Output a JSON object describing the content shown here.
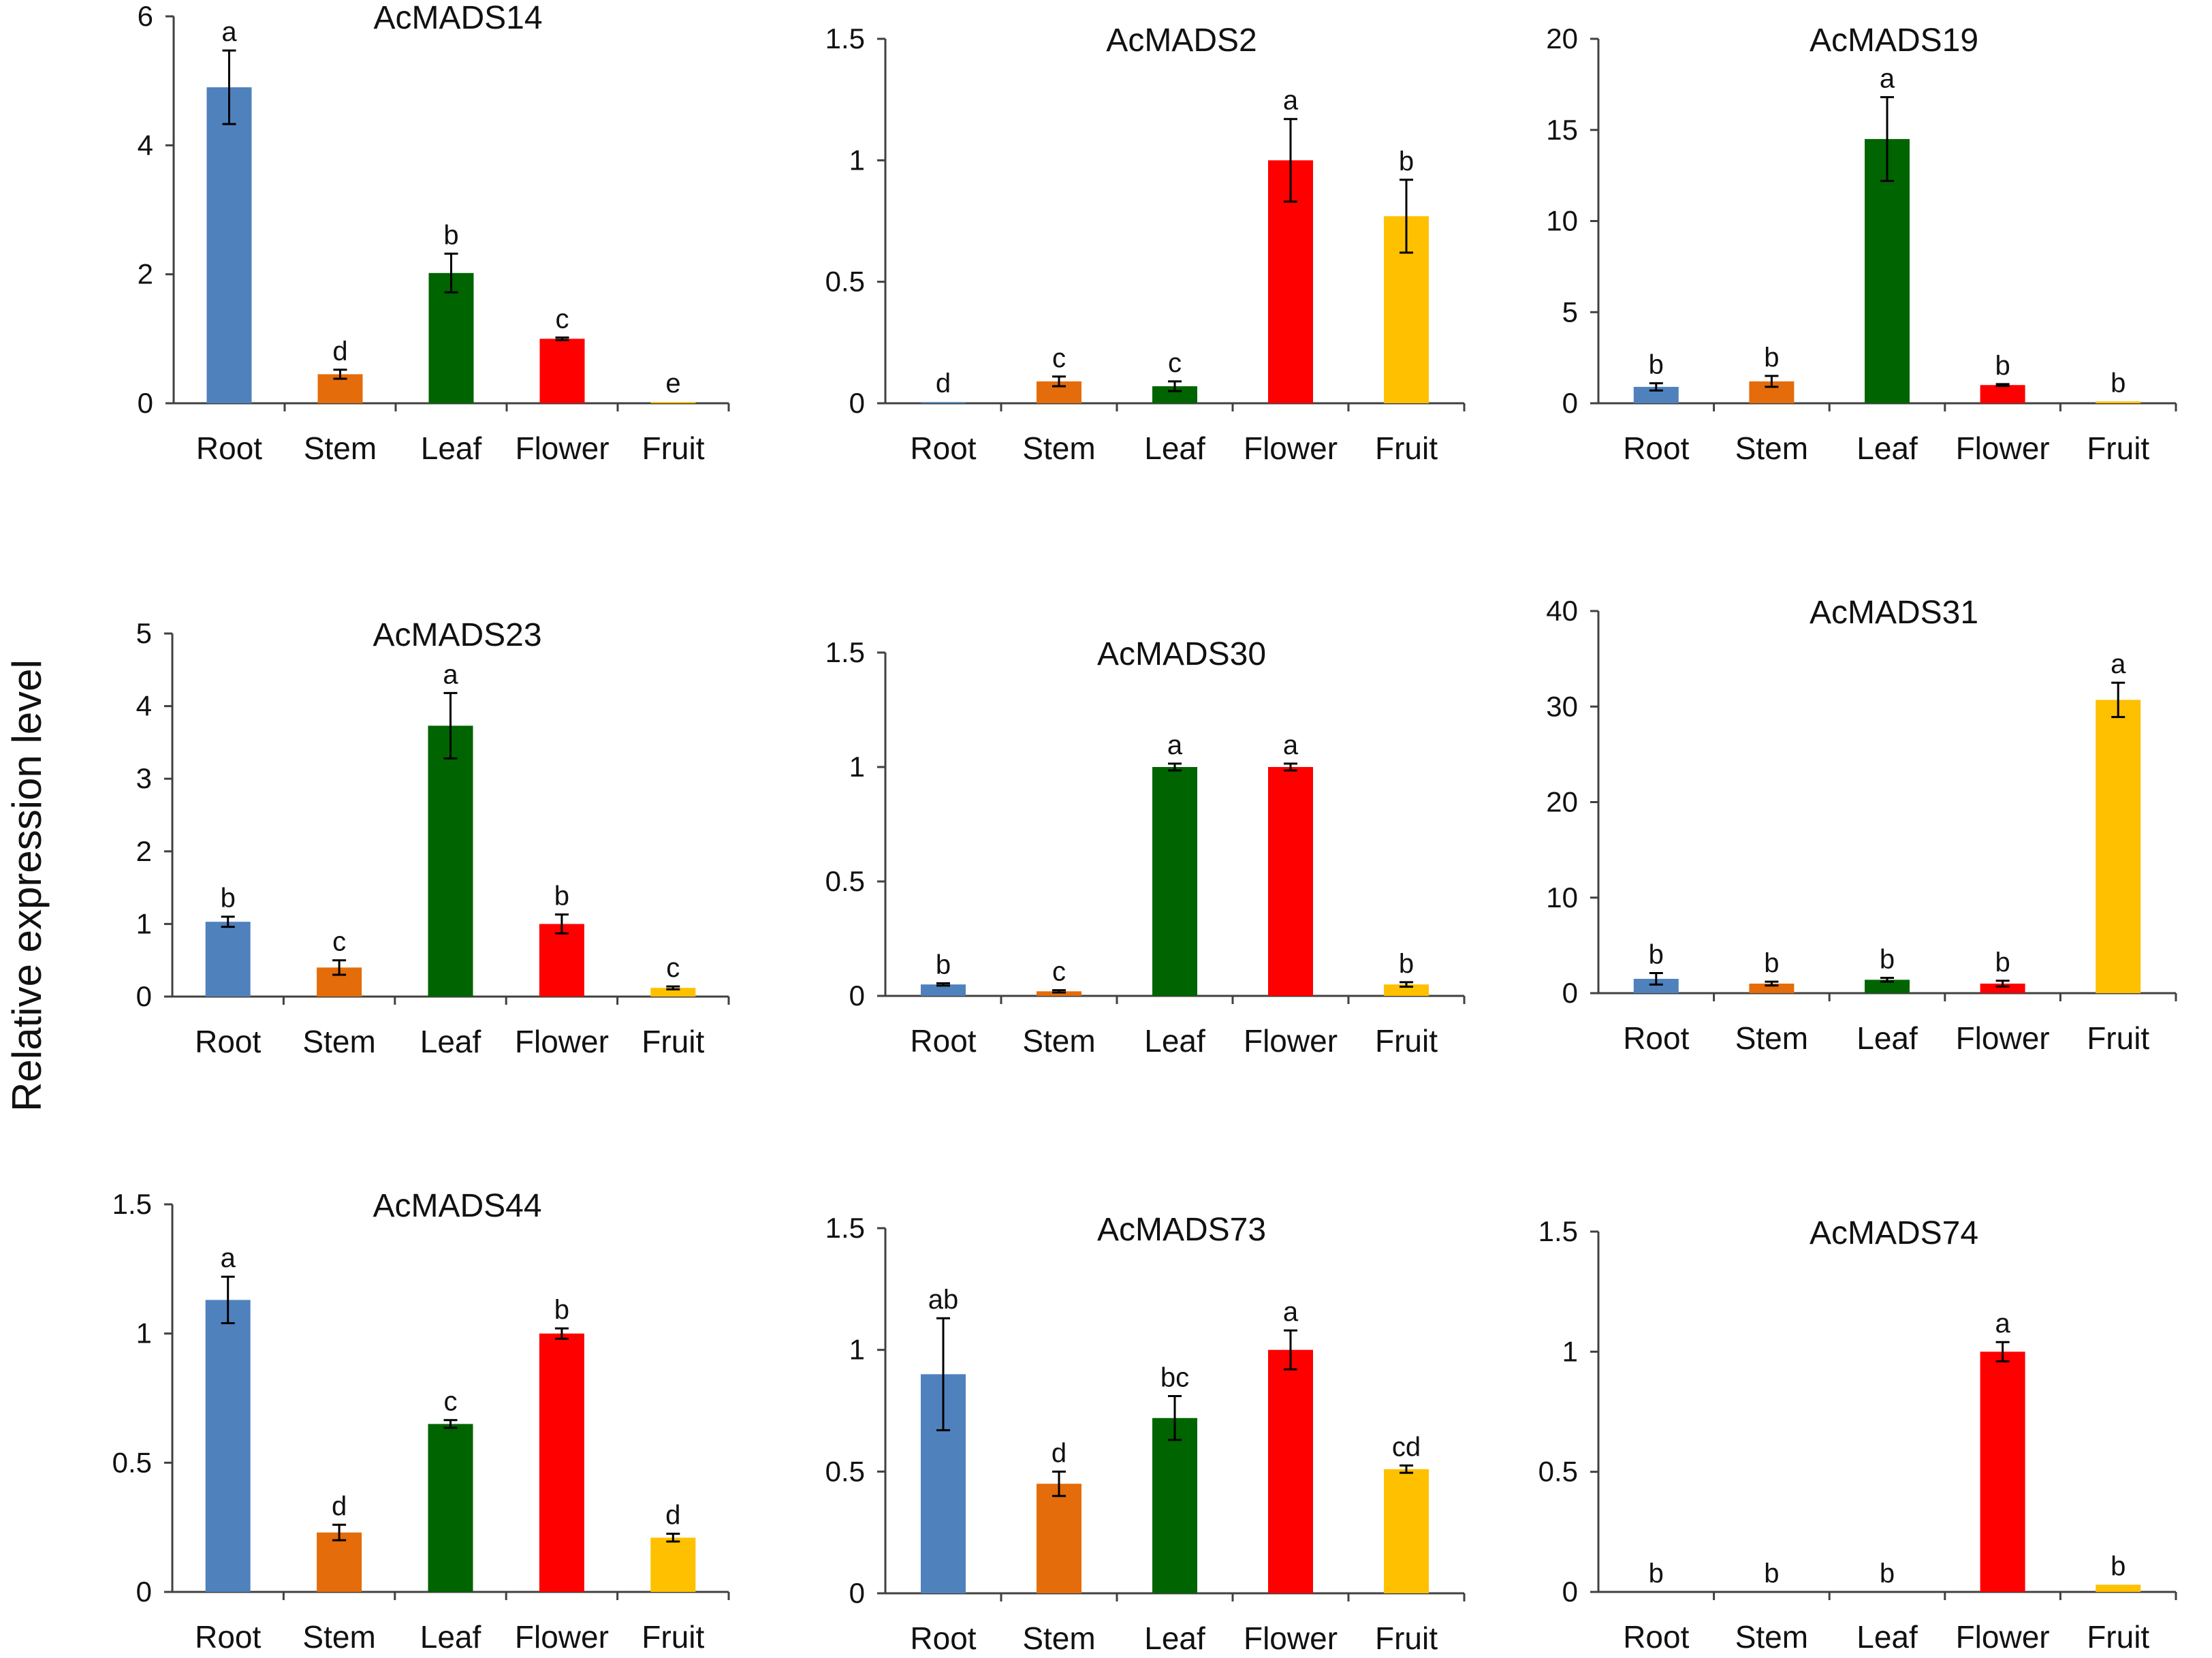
{
  "ylabel": "Relative expression level",
  "colors": {
    "Root": "#4f81bd",
    "Stem": "#e46c0a",
    "Leaf": "#006400",
    "Flower": "#ff0000",
    "Fruit": "#ffc000"
  },
  "chart_data": [
    {
      "type": "bar",
      "title": "AcMADS14",
      "categories": [
        "Root",
        "Stem",
        "Leaf",
        "Flower",
        "Fruit"
      ],
      "values": [
        4.9,
        0.45,
        2.02,
        1.0,
        0.02
      ],
      "errors": [
        0.57,
        0.07,
        0.3,
        0.02,
        0.0
      ],
      "significance": [
        "a",
        "d",
        "b",
        "c",
        "e"
      ],
      "ylim": [
        0,
        6
      ],
      "yticks": [
        "0",
        "2",
        "4",
        "6"
      ],
      "tick_values": [
        0,
        2,
        4,
        6
      ]
    },
    {
      "type": "bar",
      "title": "AcMADS2",
      "categories": [
        "Root",
        "Stem",
        "Leaf",
        "Flower",
        "Fruit"
      ],
      "values": [
        0.005,
        0.09,
        0.07,
        1.0,
        0.77
      ],
      "errors": [
        0.0,
        0.02,
        0.02,
        0.17,
        0.15
      ],
      "significance": [
        "d",
        "c",
        "c",
        "a",
        "b"
      ],
      "ylim": [
        0,
        1.5
      ],
      "yticks": [
        "0",
        "0.5",
        "1",
        "1.5"
      ],
      "tick_values": [
        0,
        0.5,
        1,
        1.5
      ]
    },
    {
      "type": "bar",
      "title": "AcMADS19",
      "categories": [
        "Root",
        "Stem",
        "Leaf",
        "Flower",
        "Fruit"
      ],
      "values": [
        0.9,
        1.2,
        14.5,
        1.0,
        0.1
      ],
      "errors": [
        0.2,
        0.3,
        2.3,
        0.05,
        0.0
      ],
      "significance": [
        "b",
        "b",
        "a",
        "b",
        "b"
      ],
      "ylim": [
        0,
        20
      ],
      "yticks": [
        "0",
        "5",
        "10",
        "15",
        "20"
      ],
      "tick_values": [
        0,
        5,
        10,
        15,
        20
      ]
    },
    {
      "type": "bar",
      "title": "AcMADS23",
      "categories": [
        "Root",
        "Stem",
        "Leaf",
        "Flower",
        "Fruit"
      ],
      "values": [
        1.03,
        0.4,
        3.73,
        1.0,
        0.12
      ],
      "errors": [
        0.07,
        0.1,
        0.45,
        0.13,
        0.02
      ],
      "significance": [
        "b",
        "c",
        "a",
        "b",
        "c"
      ],
      "ylim": [
        0,
        5
      ],
      "yticks": [
        "0",
        "1",
        "2",
        "3",
        "4",
        "5"
      ],
      "tick_values": [
        0,
        1,
        2,
        3,
        4,
        5
      ]
    },
    {
      "type": "bar",
      "title": "AcMADS30",
      "categories": [
        "Root",
        "Stem",
        "Leaf",
        "Flower",
        "Fruit"
      ],
      "values": [
        0.05,
        0.02,
        1.0,
        1.0,
        0.05
      ],
      "errors": [
        0.005,
        0.005,
        0.015,
        0.015,
        0.01
      ],
      "significance": [
        "b",
        "c",
        "a",
        "a",
        "b"
      ],
      "ylim": [
        0,
        1.5
      ],
      "yticks": [
        "0",
        "0.5",
        "1",
        "1.5"
      ],
      "tick_values": [
        0,
        0.5,
        1,
        1.5
      ]
    },
    {
      "type": "bar",
      "title": "AcMADS31",
      "categories": [
        "Root",
        "Stem",
        "Leaf",
        "Flower",
        "Fruit"
      ],
      "values": [
        1.5,
        1.0,
        1.4,
        1.0,
        30.7
      ],
      "errors": [
        0.6,
        0.2,
        0.2,
        0.3,
        1.8
      ],
      "significance": [
        "b",
        "b",
        "b",
        "b",
        "a"
      ],
      "ylim": [
        0,
        40
      ],
      "yticks": [
        "0",
        "10",
        "20",
        "30",
        "40"
      ],
      "tick_values": [
        0,
        10,
        20,
        30,
        40
      ]
    },
    {
      "type": "bar",
      "title": "AcMADS44",
      "categories": [
        "Root",
        "Stem",
        "Leaf",
        "Flower",
        "Fruit"
      ],
      "values": [
        1.13,
        0.23,
        0.65,
        1.0,
        0.21
      ],
      "errors": [
        0.09,
        0.03,
        0.015,
        0.02,
        0.015
      ],
      "significance": [
        "a",
        "d",
        "c",
        "b",
        "d"
      ],
      "ylim": [
        0,
        1.5
      ],
      "yticks": [
        "0",
        "0.5",
        "1",
        "1.5"
      ],
      "tick_values": [
        0,
        0.5,
        1,
        1.5
      ]
    },
    {
      "type": "bar",
      "title": "AcMADS73",
      "categories": [
        "Root",
        "Stem",
        "Leaf",
        "Flower",
        "Fruit"
      ],
      "values": [
        0.9,
        0.45,
        0.72,
        1.0,
        0.51
      ],
      "errors": [
        0.23,
        0.05,
        0.09,
        0.08,
        0.015
      ],
      "significance": [
        "ab",
        "d",
        "bc",
        "a",
        "cd"
      ],
      "ylim": [
        0,
        1.5
      ],
      "yticks": [
        "0",
        "0.5",
        "1",
        "1.5"
      ],
      "tick_values": [
        0,
        0.5,
        1,
        1.5
      ]
    },
    {
      "type": "bar",
      "title": "AcMADS74",
      "categories": [
        "Root",
        "Stem",
        "Leaf",
        "Flower",
        "Fruit"
      ],
      "values": [
        0.0,
        0.0,
        0.0,
        1.0,
        0.03
      ],
      "errors": [
        0.0,
        0.0,
        0.0,
        0.04,
        0.0
      ],
      "significance": [
        "b",
        "b",
        "b",
        "a",
        "b"
      ],
      "ylim": [
        0,
        1.5
      ],
      "yticks": [
        "0",
        "0.5",
        "1",
        "1.5"
      ],
      "tick_values": [
        0,
        0.5,
        1,
        1.5
      ]
    }
  ]
}
